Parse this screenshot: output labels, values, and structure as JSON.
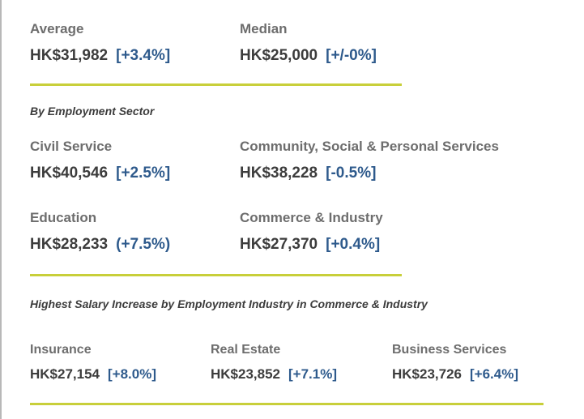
{
  "overall": {
    "average": {
      "label": "Average",
      "amount": "HK$31,982",
      "change": "[+3.4%]"
    },
    "median": {
      "label": "Median",
      "amount": "HK$25,000",
      "change": "[+/-0%]"
    }
  },
  "sector": {
    "heading": "By Employment Sector",
    "items": [
      {
        "label": "Civil Service",
        "amount": "HK$40,546",
        "change": "[+2.5%]"
      },
      {
        "label": "Community, Social & Personal Services",
        "amount": "HK$38,228",
        "change": "[-0.5%]"
      },
      {
        "label": "Education",
        "amount": "HK$28,233",
        "change": "(+7.5%)"
      },
      {
        "label": "Commerce & Industry",
        "amount": "HK$27,370",
        "change": "[+0.4%]"
      }
    ]
  },
  "industry": {
    "heading": "Highest Salary Increase by Employment Industry in Commerce & Industry",
    "items": [
      {
        "label": "Insurance",
        "amount": "HK$27,154",
        "change": "[+8.0%]"
      },
      {
        "label": "Real Estate",
        "amount": "HK$23,852",
        "change": "[+7.1%]"
      },
      {
        "label": "Business Services",
        "amount": "HK$23,726",
        "change": "[+6.4%]"
      }
    ]
  },
  "colors": {
    "accent_rule": "#c8cf3a",
    "change_text": "#2e5a8c"
  }
}
